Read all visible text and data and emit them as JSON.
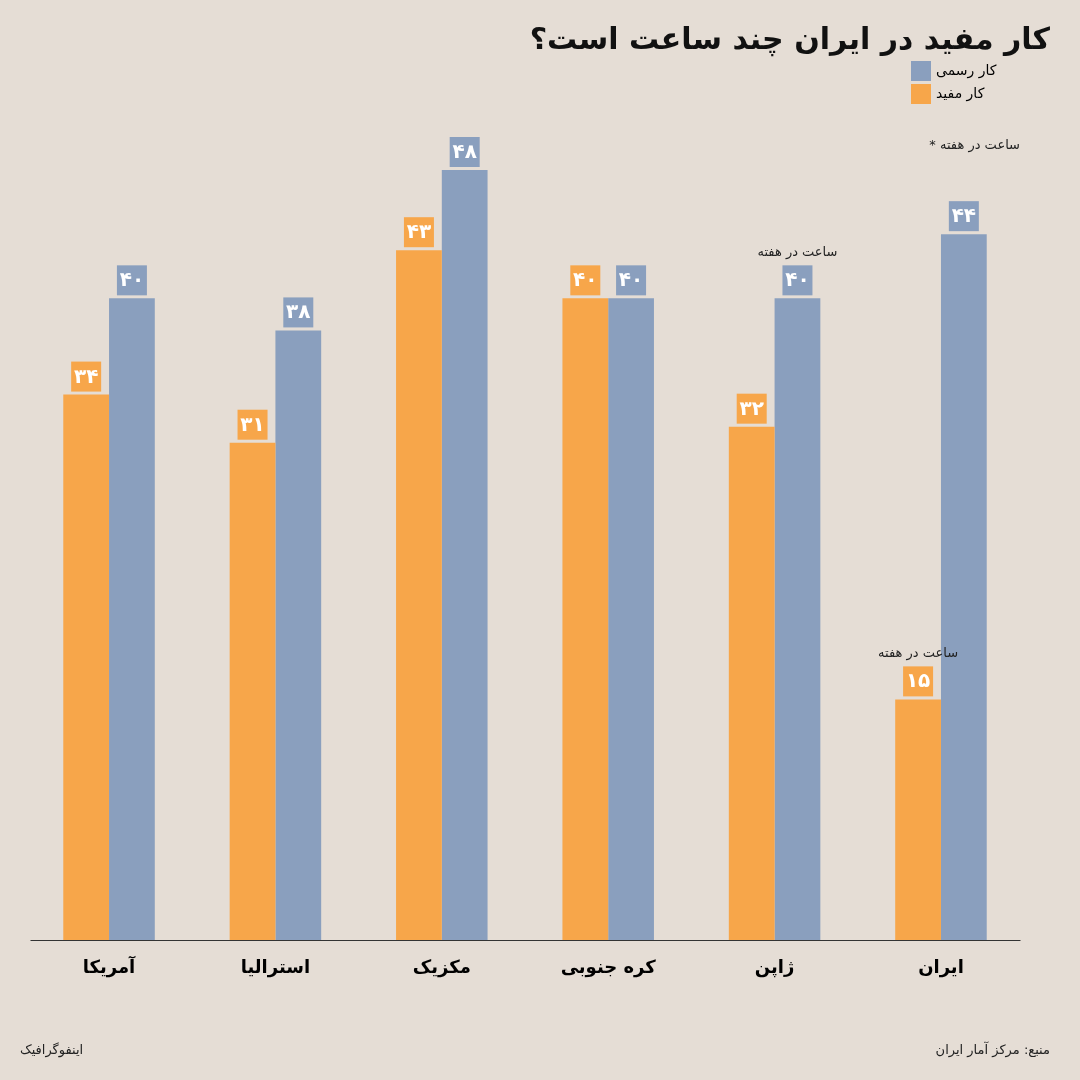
{
  "chart_data": {
    "type": "bar",
    "title": "کار مفید در ایران چند ساعت است؟",
    "categories": [
      "آمریکا",
      "استرالیا",
      "مکزیک",
      "کره جنوبی",
      "ژاپن",
      "ایران"
    ],
    "series": [
      {
        "name": "کار رسمی",
        "color": "#8a9fbe",
        "values": [
          40,
          38,
          48,
          40,
          40,
          44
        ],
        "value_labels": [
          "۴۰",
          "۳۸",
          "۴۸",
          "۴۰",
          "۴۰",
          "۴۴"
        ]
      },
      {
        "name": "کار مفید",
        "color": "#f7a64a",
        "values": [
          34,
          31,
          43,
          40,
          32,
          15
        ],
        "value_labels": [
          "۳۴",
          "۳۱",
          "۴۳",
          "۴۰",
          "۳۲",
          "۱۵"
        ]
      }
    ],
    "legend": "top right",
    "annotations": [
      "* ساعت در هفته",
      {
        "text": "ساعت در هفته",
        "x": "ژاپن",
        "y": 40
      },
      {
        "text": "ساعت در هفته",
        "x": "ایران",
        "y": 15
      },
      "منبع: مرکز آمار ایران",
      "اینفوگرافیک"
    ]
  }
}
